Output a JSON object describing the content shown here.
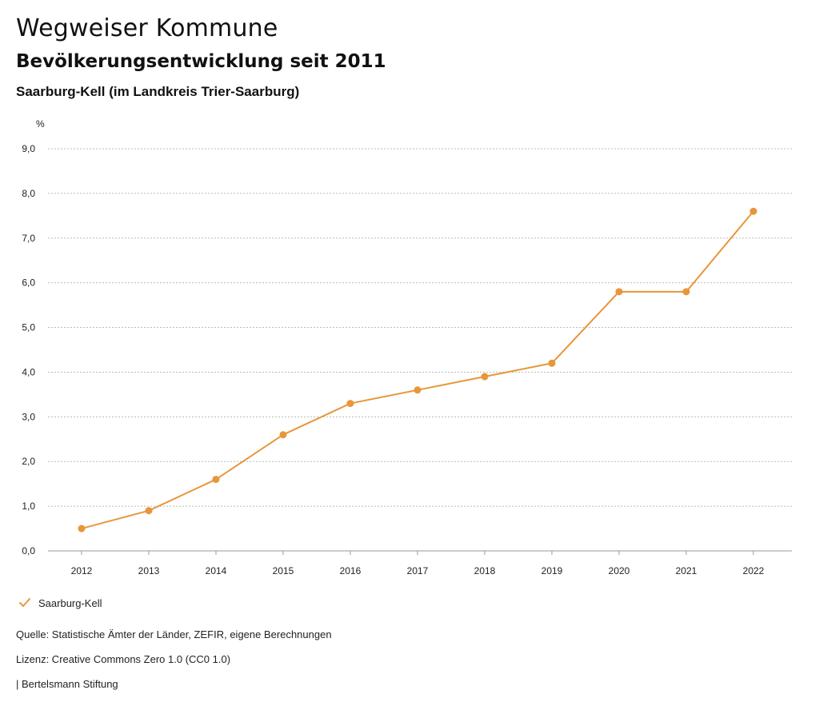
{
  "header": {
    "title": "Wegweiser Kommune",
    "subtitle": "Bevölkerungsentwicklung seit 2011",
    "region": "Saarburg-Kell (im Landkreis Trier-Saarburg)"
  },
  "colors": {
    "series": "#E8963A",
    "grid": "#bbbbbb",
    "text": "#222222"
  },
  "chart_data": {
    "type": "line",
    "title": "Bevölkerungsentwicklung seit 2011",
    "xlabel": "",
    "ylabel": "%",
    "categories": [
      "2012",
      "2013",
      "2014",
      "2015",
      "2016",
      "2017",
      "2018",
      "2019",
      "2020",
      "2021",
      "2022"
    ],
    "series": [
      {
        "name": "Saarburg-Kell",
        "values": [
          0.5,
          0.9,
          1.6,
          2.6,
          3.3,
          3.6,
          3.9,
          4.2,
          5.8,
          5.8,
          7.6
        ]
      }
    ],
    "ylim": [
      0,
      9
    ],
    "yticks": [
      "0,0",
      "1,0",
      "2,0",
      "3,0",
      "4,0",
      "5,0",
      "6,0",
      "7,0",
      "8,0",
      "9,0"
    ],
    "grid": true,
    "legend": "bottom-left"
  },
  "legend": {
    "label": "Saarburg-Kell",
    "icon": "check-icon"
  },
  "footer": {
    "source": "Quelle: Statistische Ämter der Länder, ZEFIR, eigene Berechnungen",
    "license": "Lizenz: Creative Commons Zero 1.0 (CC0 1.0)",
    "publisher": "| Bertelsmann Stiftung"
  }
}
